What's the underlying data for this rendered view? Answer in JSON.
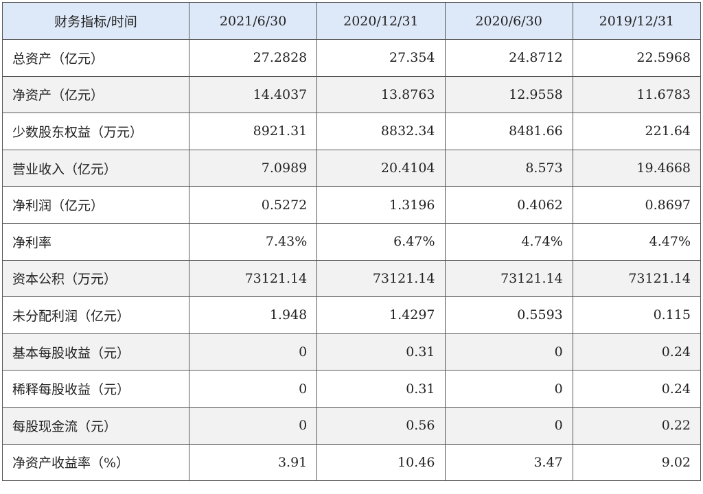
{
  "table": {
    "header": [
      "财务指标/时间",
      "2021/6/30",
      "2020/12/31",
      "2020/6/30",
      "2019/12/31"
    ],
    "rows": [
      [
        "总资产（亿元）",
        "27.2828",
        "27.354",
        "24.8712",
        "22.5968"
      ],
      [
        "净资产（亿元）",
        "14.4037",
        "13.8763",
        "12.9558",
        "11.6783"
      ],
      [
        "少数股东权益（万元）",
        "8921.31",
        "8832.34",
        "8481.66",
        "221.64"
      ],
      [
        "营业收入（亿元）",
        "7.0989",
        "20.4104",
        "8.573",
        "19.4668"
      ],
      [
        "净利润（亿元）",
        "0.5272",
        "1.3196",
        "0.4062",
        "0.8697"
      ],
      [
        "净利率",
        "7.43%",
        "6.47%",
        "4.74%",
        "4.47%"
      ],
      [
        "资本公积（万元）",
        "73121.14",
        "73121.14",
        "73121.14",
        "73121.14"
      ],
      [
        "未分配利润（亿元）",
        "1.948",
        "1.4297",
        "0.5593",
        "0.115"
      ],
      [
        "基本每股收益（元）",
        "0",
        "0.31",
        "0",
        "0.24"
      ],
      [
        "稀释每股收益（元）",
        "0",
        "0.31",
        "0",
        "0.24"
      ],
      [
        "每股现金流（元）",
        "0",
        "0.56",
        "0",
        "0.22"
      ],
      [
        "净资产收益率（%）",
        "3.91",
        "10.46",
        "3.47",
        "9.02"
      ]
    ]
  }
}
